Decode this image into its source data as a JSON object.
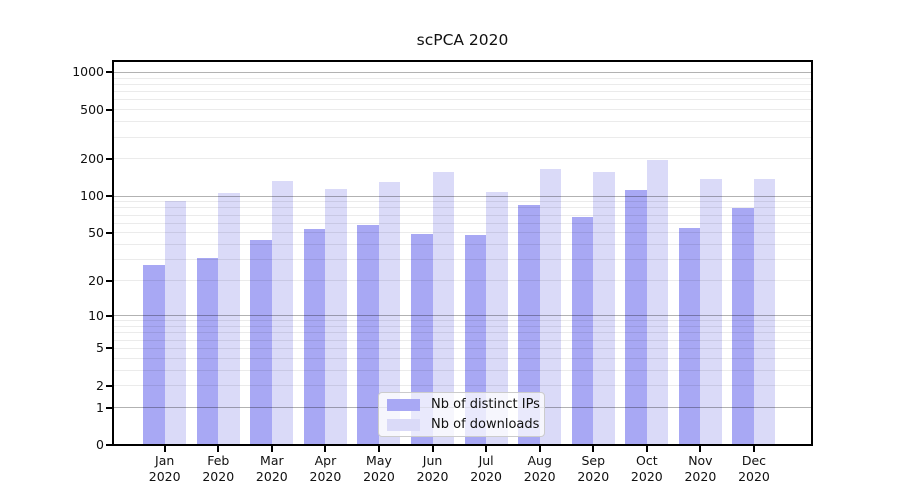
{
  "chart_data": {
    "type": "bar",
    "title": "scPCA 2020",
    "categories": [
      "Jan",
      "Feb",
      "Mar",
      "Apr",
      "May",
      "Jun",
      "Jul",
      "Aug",
      "Sep",
      "Oct",
      "Nov",
      "Dec"
    ],
    "x_sublabel": "2020",
    "series": [
      {
        "name": "Nb of distinct IPs",
        "color": "#a8a8f4",
        "values": [
          27,
          31,
          44,
          54,
          58,
          49,
          48,
          84,
          67,
          112,
          55,
          80
        ]
      },
      {
        "name": "Nb of downloads",
        "color": "#dadaf8",
        "values": [
          92,
          105,
          133,
          114,
          131,
          158,
          107,
          166,
          157,
          196,
          138,
          138
        ]
      }
    ],
    "y_ticks": [
      0,
      1,
      2,
      5,
      10,
      20,
      50,
      100,
      200,
      500,
      1000
    ],
    "y_scale": "log10(value+1)",
    "ylim": [
      0,
      1230
    ],
    "grid": true,
    "legend_position": "inside-bottom-center",
    "colors": {
      "major_gridline": "rgba(0,0,0,0.30)",
      "minor_gridline": "rgba(0,0,0,0.08)",
      "axis": "#000000",
      "text": "#111111",
      "legend_border": "#cccccc"
    }
  }
}
